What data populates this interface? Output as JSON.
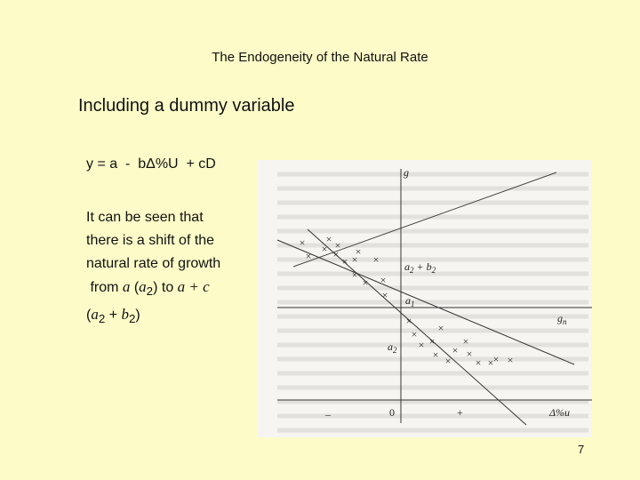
{
  "slide": {
    "title": "The Endogeneity of the Natural Rate",
    "subtitle": "Including a dummy variable",
    "equation": "y = a  -  bΔ%U  + cD",
    "body": {
      "line1": "It can be seen that",
      "line2": "there is a shift of the",
      "line3": "natural rate of growth",
      "line4_pre": " from ",
      "line4_a": "a",
      "line4_open": " (",
      "line4_a2": "a",
      "line4_a2_sub": "2",
      "line4_close": ") to ",
      "line4_ac": "a + c",
      "line5_open": "(",
      "line5_a": "a",
      "line5_a_sub": "2",
      "line5_plus": " + ",
      "line5_b": "b",
      "line5_b_sub": "2",
      "line5_close": ")"
    },
    "page_number": "7"
  },
  "figure": {
    "y_axis_label": "g",
    "x_axis_label": "Δ%u",
    "origin_label": "0",
    "minus_label": "–",
    "plus_label": "+",
    "gn_label": "g",
    "gn_sub": "n",
    "a1_label": "a",
    "a1_sub": "1",
    "a2_label": "a",
    "a2_sub": "2",
    "a2b2_label": "a",
    "a2b2_sub": "2",
    "a2b2_plus": " + b",
    "a2b2_sub2": "2",
    "marker": "×"
  }
}
